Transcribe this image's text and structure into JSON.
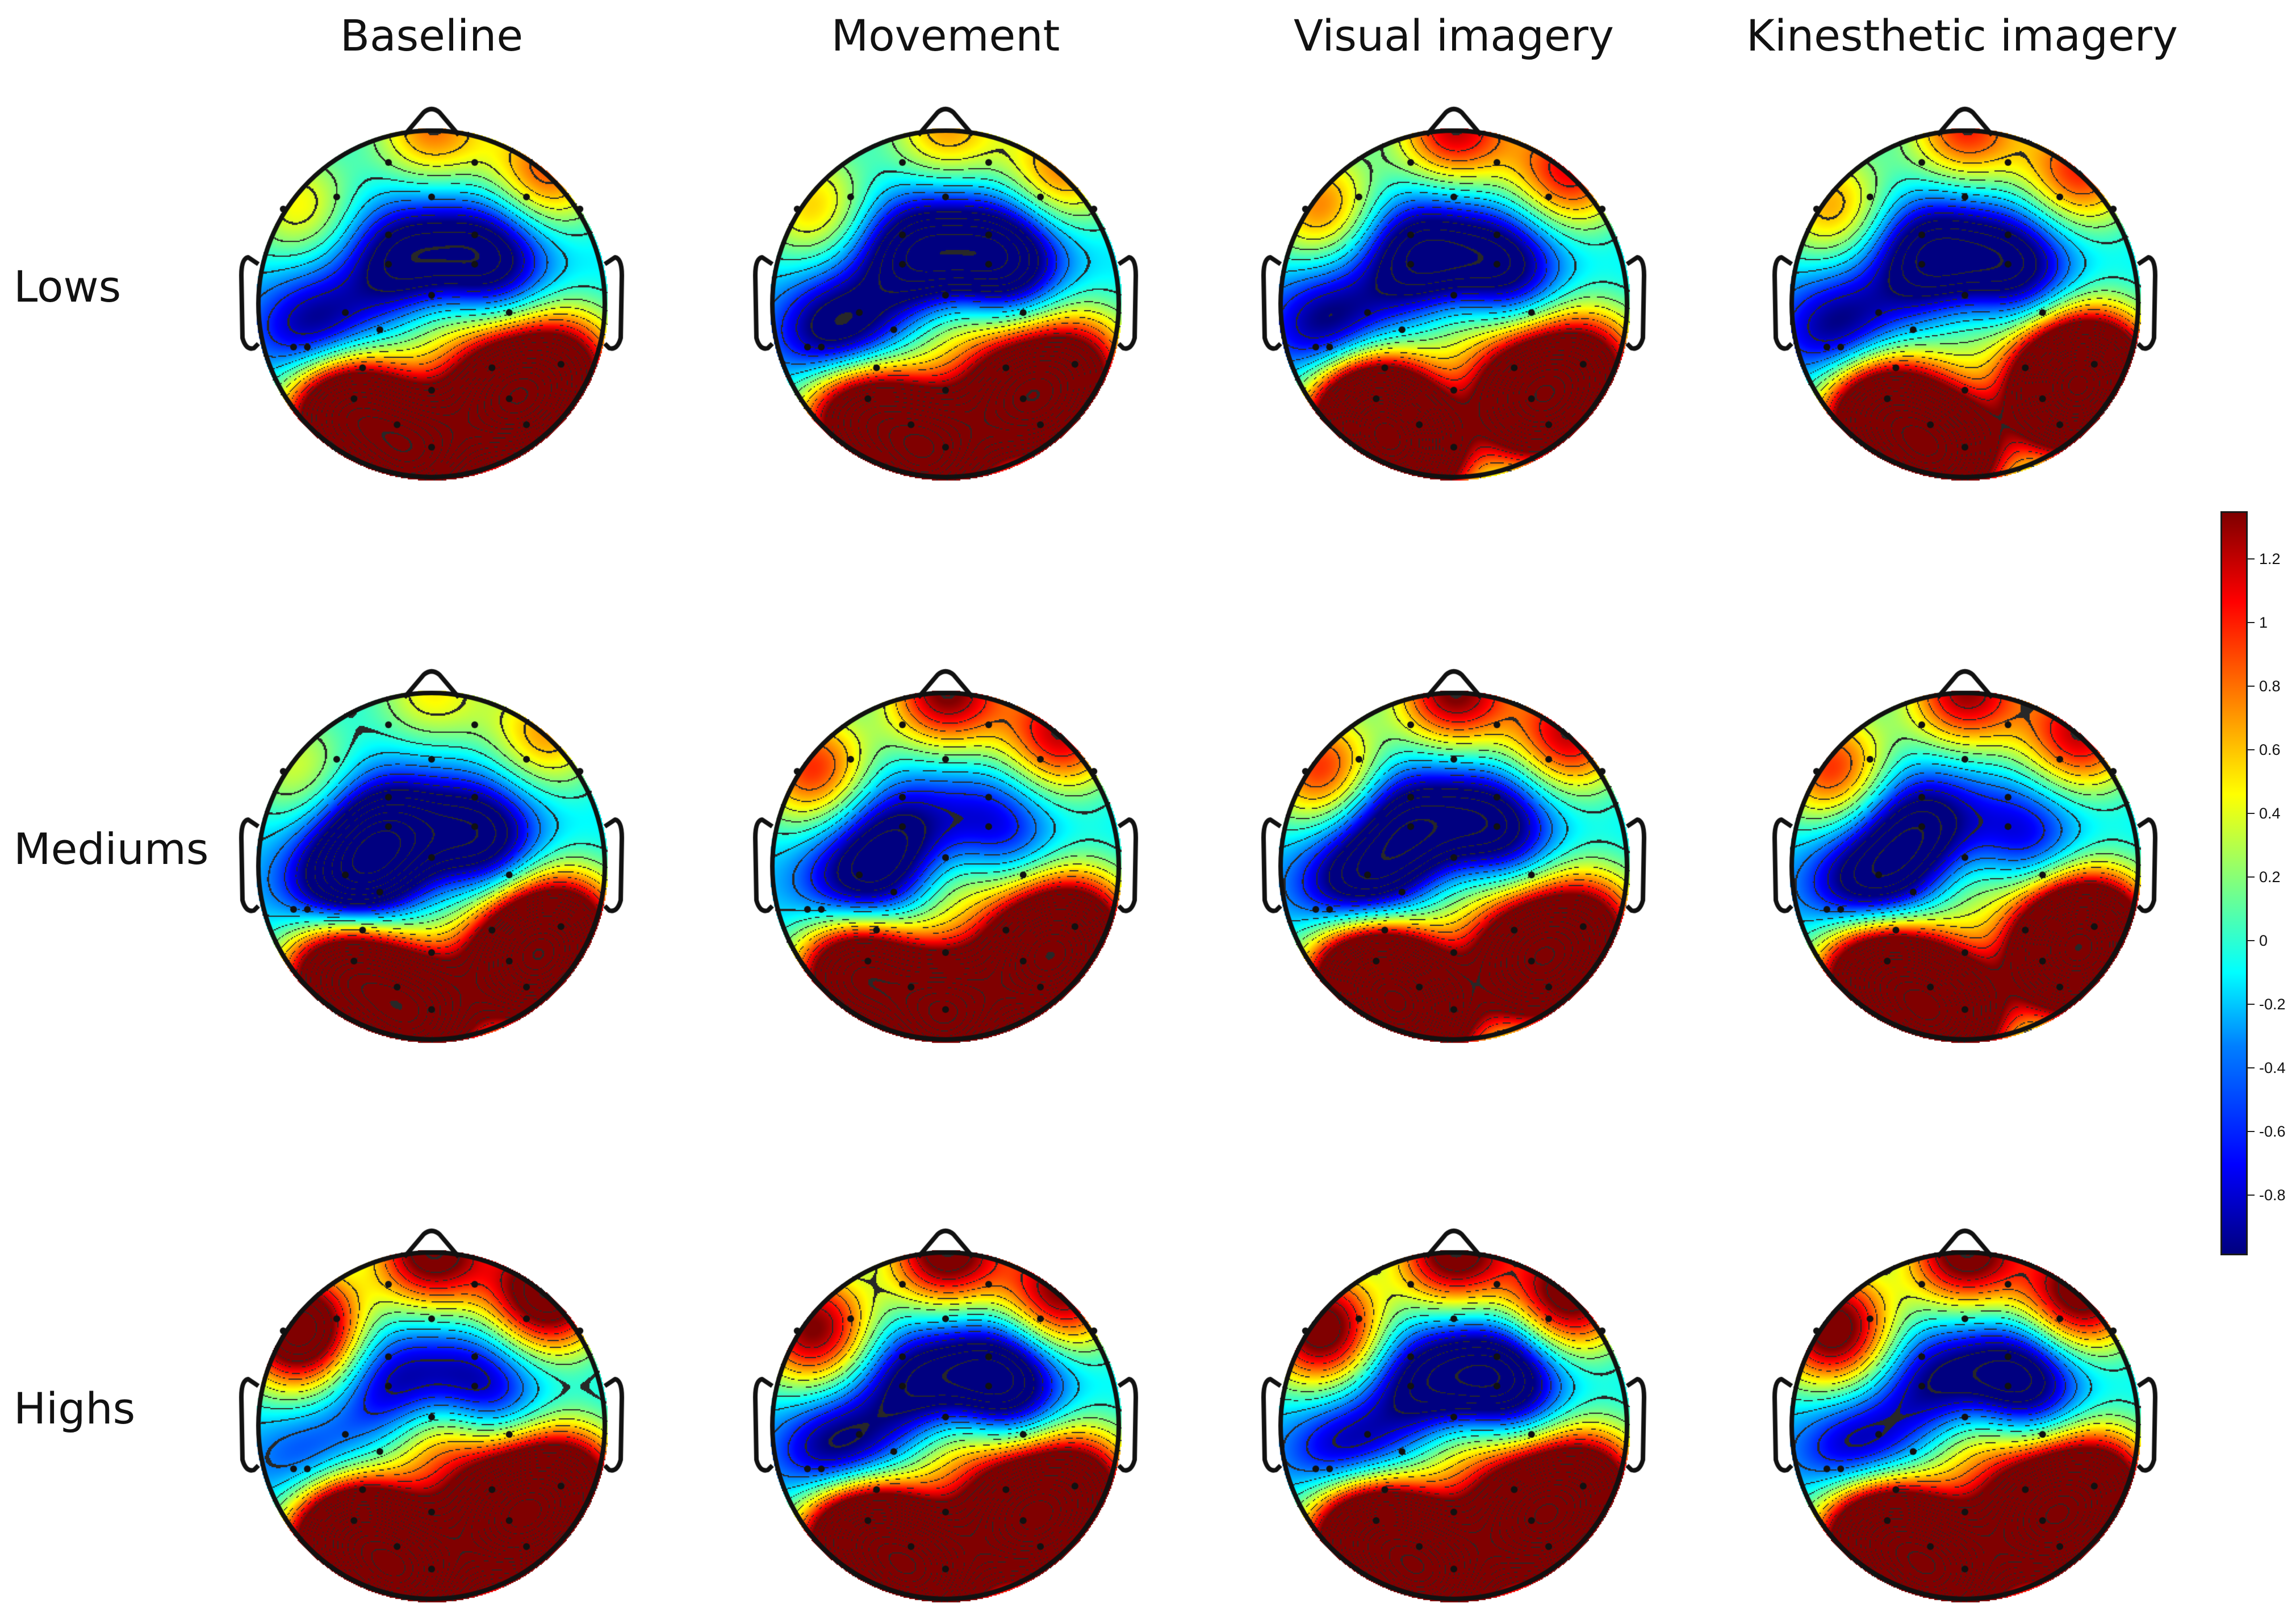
{
  "chart_data": {
    "type": "heatmap",
    "title": "",
    "columns": [
      "Baseline",
      "Movement",
      "Visual imagery",
      "Kinesthetic imagery"
    ],
    "rows": [
      "Lows",
      "Mediums",
      "Highs"
    ],
    "colorbar": {
      "colormap": "jet",
      "range": [
        -0.98,
        1.36
      ],
      "ticks": [
        1.2,
        1,
        0.8,
        0.6,
        0.4,
        0.2,
        0,
        -0.2,
        -0.4,
        -0.6,
        -0.8
      ],
      "tick_labels": [
        "1.2",
        "1",
        "0.8",
        "0.6",
        "0.4",
        "0.2",
        "0",
        "-0.2",
        "-0.4",
        "-0.6",
        "-0.8"
      ]
    },
    "channels": [
      [
        -0.25,
        -0.82
      ],
      [
        0.25,
        -0.82
      ],
      [
        -0.86,
        -0.55
      ],
      [
        0.86,
        -0.55
      ],
      [
        -0.55,
        -0.62
      ],
      [
        0,
        -0.62
      ],
      [
        0.55,
        -0.62
      ],
      [
        -0.25,
        -0.4
      ],
      [
        0.25,
        -0.4
      ],
      [
        -0.25,
        -0.23
      ],
      [
        0.25,
        -0.23
      ],
      [
        0,
        -0.05
      ],
      [
        -0.5,
        0.05
      ],
      [
        -0.3,
        0.15
      ],
      [
        0.45,
        0.05
      ],
      [
        -0.72,
        0.25
      ],
      [
        -0.4,
        0.37
      ],
      [
        0.35,
        0.37
      ],
      [
        0.75,
        0.35
      ],
      [
        -0.45,
        0.55
      ],
      [
        0,
        0.5
      ],
      [
        0.45,
        0.55
      ],
      [
        -0.2,
        0.7
      ],
      [
        0,
        0.83
      ],
      [
        0.55,
        0.7
      ],
      [
        -0.8,
        0.25
      ]
    ],
    "sources": [
      [
        [
          -0.15,
          -0.22,
          -1.2
        ],
        [
          0.3,
          -0.25,
          -1.2
        ],
        [
          -0.65,
          0.18,
          -1.0
        ],
        [
          0.65,
          -0.75,
          1.1
        ],
        [
          -0.75,
          -0.55,
          0.7
        ],
        [
          0,
          -1.0,
          1.0
        ],
        [
          -0.1,
          0.85,
          3.0
        ],
        [
          0.45,
          0.55,
          3.2
        ],
        [
          -0.5,
          0.6,
          2.8
        ],
        [
          0.05,
          0.05,
          0.7
        ],
        [
          0.75,
          0.35,
          1.5
        ]
      ],
      [
        [
          -0.15,
          -0.25,
          -1.5
        ],
        [
          0.3,
          -0.25,
          -1.5
        ],
        [
          -0.6,
          0.2,
          -1.3
        ],
        [
          0.65,
          -0.75,
          1.0
        ],
        [
          -0.75,
          -0.55,
          0.8
        ],
        [
          0,
          -1.0,
          0.9
        ],
        [
          -0.1,
          0.85,
          3.0
        ],
        [
          0.45,
          0.55,
          2.8
        ],
        [
          -0.5,
          0.6,
          2.3
        ],
        [
          0.05,
          0.05,
          0.8
        ],
        [
          0.75,
          0.35,
          1.4
        ]
      ],
      [
        [
          -0.2,
          -0.25,
          -1.3
        ],
        [
          0.25,
          -0.2,
          -1.2
        ],
        [
          -0.7,
          0.15,
          -1.0
        ],
        [
          0.65,
          -0.75,
          1.3
        ],
        [
          -0.75,
          -0.55,
          1.0
        ],
        [
          0,
          -1.0,
          1.4
        ],
        [
          -0.3,
          0.85,
          3.4
        ],
        [
          0.45,
          0.55,
          3.0
        ],
        [
          -0.5,
          0.6,
          2.8
        ],
        [
          0.05,
          0.05,
          0.7
        ],
        [
          0.75,
          0.35,
          1.6
        ]
      ],
      [
        [
          -0.2,
          -0.25,
          -1.3
        ],
        [
          0.25,
          -0.2,
          -1.2
        ],
        [
          -0.7,
          0.18,
          -1.0
        ],
        [
          0.65,
          -0.75,
          1.2
        ],
        [
          -0.75,
          -0.55,
          0.9
        ],
        [
          0,
          -1.0,
          1.2
        ],
        [
          -0.15,
          0.85,
          3.2
        ],
        [
          0.6,
          0.5,
          3.5
        ],
        [
          -0.5,
          0.6,
          2.6
        ],
        [
          0.05,
          0.05,
          0.6
        ],
        [
          0.75,
          0.35,
          1.6
        ]
      ],
      [
        [
          -0.25,
          -0.15,
          -1.6
        ],
        [
          0.25,
          -0.15,
          -1.3
        ],
        [
          -0.5,
          0.15,
          -1.3
        ],
        [
          0.65,
          -0.75,
          0.9
        ],
        [
          -0.75,
          -0.55,
          0.6
        ],
        [
          0,
          -1.0,
          0.7
        ],
        [
          -0.1,
          0.85,
          3.0
        ],
        [
          0.55,
          0.55,
          3.2
        ],
        [
          -0.5,
          0.6,
          2.8
        ],
        [
          0.05,
          0.05,
          0.5
        ],
        [
          0.75,
          0.35,
          1.7
        ]
      ],
      [
        [
          -0.25,
          -0.15,
          -1.0
        ],
        [
          0.25,
          -0.2,
          -0.8
        ],
        [
          -0.5,
          0.15,
          -1.0
        ],
        [
          0.65,
          -0.75,
          1.4
        ],
        [
          -0.75,
          -0.55,
          1.2
        ],
        [
          0,
          -1.0,
          1.6
        ],
        [
          0,
          0.85,
          3.4
        ],
        [
          0.55,
          0.55,
          3.2
        ],
        [
          -0.5,
          0.6,
          2.8
        ],
        [
          0.05,
          0.05,
          0.8
        ],
        [
          0.75,
          0.35,
          1.6
        ]
      ],
      [
        [
          -0.25,
          -0.2,
          -1.3
        ],
        [
          0.2,
          -0.2,
          -1.3
        ],
        [
          -0.55,
          0.15,
          -1.2
        ],
        [
          0.65,
          -0.75,
          1.4
        ],
        [
          -0.75,
          -0.55,
          1.2
        ],
        [
          0,
          -1.0,
          1.6
        ],
        [
          -0.25,
          0.85,
          3.6
        ],
        [
          0.45,
          0.55,
          3.0
        ],
        [
          -0.5,
          0.6,
          2.8
        ],
        [
          0.05,
          0.05,
          0.7
        ],
        [
          0.75,
          0.35,
          1.6
        ]
      ],
      [
        [
          -0.25,
          -0.2,
          -1.2
        ],
        [
          0.3,
          -0.15,
          -0.8
        ],
        [
          -0.55,
          0.15,
          -1.2
        ],
        [
          0.65,
          -0.75,
          1.4
        ],
        [
          -0.75,
          -0.55,
          1.2
        ],
        [
          0,
          -1.0,
          1.5
        ],
        [
          -0.15,
          0.85,
          3.6
        ],
        [
          0.6,
          0.5,
          3.4
        ],
        [
          -0.5,
          0.6,
          2.8
        ],
        [
          0.05,
          0.05,
          0.7
        ],
        [
          0.75,
          0.35,
          1.6
        ]
      ],
      [
        [
          -0.2,
          -0.2,
          -0.9
        ],
        [
          0.25,
          -0.2,
          -1.0
        ],
        [
          -0.65,
          0.3,
          -0.8
        ],
        [
          0.65,
          -0.75,
          2.0
        ],
        [
          -0.75,
          -0.55,
          2.2
        ],
        [
          0,
          -1.0,
          1.8
        ],
        [
          -0.15,
          0.85,
          3.8
        ],
        [
          0.45,
          0.55,
          3.4
        ],
        [
          -0.5,
          0.6,
          3.2
        ],
        [
          0.05,
          0.05,
          1.2
        ],
        [
          0.75,
          0.35,
          2.2
        ]
      ],
      [
        [
          -0.15,
          -0.2,
          -1.2
        ],
        [
          0.3,
          -0.25,
          -1.5
        ],
        [
          -0.6,
          0.2,
          -1.2
        ],
        [
          0.65,
          -0.75,
          1.6
        ],
        [
          -0.75,
          -0.55,
          1.6
        ],
        [
          0,
          -1.0,
          1.8
        ],
        [
          -0.15,
          0.85,
          3.6
        ],
        [
          0.45,
          0.55,
          3.2
        ],
        [
          -0.5,
          0.6,
          3.0
        ],
        [
          0.05,
          0.05,
          1.0
        ],
        [
          0.75,
          0.35,
          1.8
        ]
      ],
      [
        [
          -0.15,
          -0.2,
          -1.2
        ],
        [
          0.25,
          -0.25,
          -1.5
        ],
        [
          -0.6,
          0.2,
          -1.0
        ],
        [
          0.65,
          -0.75,
          1.8
        ],
        [
          -0.75,
          -0.55,
          1.8
        ],
        [
          0,
          -1.0,
          1.8
        ],
        [
          -0.15,
          0.85,
          3.8
        ],
        [
          0.45,
          0.55,
          3.2
        ],
        [
          -0.5,
          0.6,
          3.0
        ],
        [
          0.05,
          0.05,
          1.0
        ],
        [
          0.75,
          0.35,
          2.0
        ]
      ],
      [
        [
          -0.15,
          -0.2,
          -1.0
        ],
        [
          0.3,
          -0.25,
          -1.3
        ],
        [
          -0.6,
          0.2,
          -1.0
        ],
        [
          0.65,
          -0.75,
          1.8
        ],
        [
          -0.75,
          -0.55,
          1.8
        ],
        [
          0,
          -1.0,
          1.8
        ],
        [
          -0.15,
          0.85,
          3.6
        ],
        [
          0.45,
          0.55,
          3.2
        ],
        [
          -0.5,
          0.6,
          3.0
        ],
        [
          0.05,
          0.05,
          1.0
        ],
        [
          0.75,
          0.35,
          2.0
        ]
      ]
    ]
  }
}
